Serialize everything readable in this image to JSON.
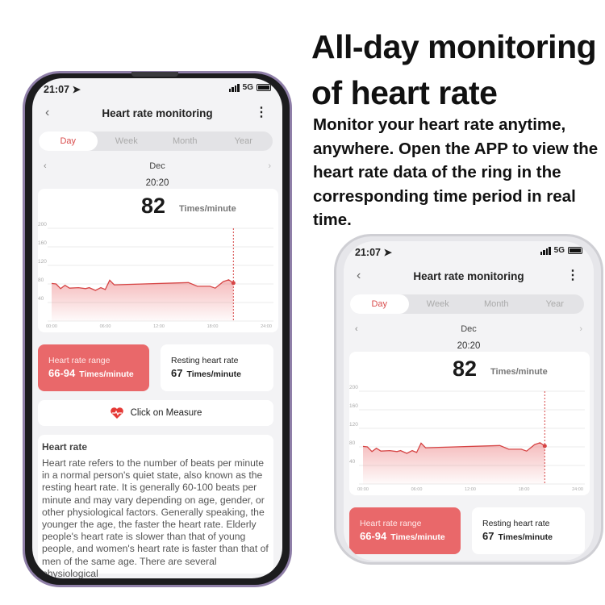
{
  "headline": {
    "line1": "All-day monitoring",
    "line2": "of heart rate"
  },
  "description": "Monitor your heart rate anytime, anywhere. Open the APP to view the heart rate data of the ring in the corresponding time period in real time.",
  "app": {
    "status": {
      "time": "21:07",
      "network": "5G",
      "icons": [
        "location-arrow-icon",
        "signal-icon",
        "battery-icon"
      ]
    },
    "header": {
      "title": "Heart rate monitoring",
      "back_icon": "chevron-left-icon",
      "menu_icon": "more-vertical-icon"
    },
    "tabs": [
      {
        "label": "Day",
        "active": true
      },
      {
        "label": "Week"
      },
      {
        "label": "Month"
      },
      {
        "label": "Year"
      }
    ],
    "month": "Dec",
    "selected_time": "20:20",
    "current": {
      "value": "82",
      "unit": "Times/minute"
    },
    "range": {
      "label": "Heart rate range",
      "value": "66-94",
      "unit": "Times/minute"
    },
    "resting": {
      "label": "Resting heart rate",
      "value": "67",
      "unit": "Times/minute"
    },
    "measure": {
      "label": "Click on Measure",
      "icon": "heart-pulse-icon"
    },
    "info": {
      "title": "Heart rate",
      "text": "Heart rate refers to the number of beats per minute in a normal person's quiet state, also known as the resting heart rate. It is generally 60-100 beats per minute and may vary depending on age, gender, or other physiological factors. Generally speaking, the younger the age, the faster the heart rate. Elderly people's heart rate is slower than that of young people, and women's heart rate is faster than that of men of the same age. There are several physiological"
    },
    "colors": {
      "accent": "#e9686a",
      "line": "#d64545",
      "tab_active": "#d94b4b"
    }
  },
  "chart_data": {
    "type": "area",
    "x_ticks": [
      "00:00",
      "06:00",
      "12:00",
      "18:00",
      "24:00"
    ],
    "y_ticks": [
      "200",
      "160",
      "120",
      "80",
      "40"
    ],
    "ylim": [
      0,
      200
    ],
    "xlim_hours": [
      0,
      24
    ],
    "grid": true,
    "x_hours": [
      0,
      0.5,
      1,
      1.5,
      2,
      3,
      3.8,
      4.2,
      4.9,
      5.5,
      6,
      6.5,
      7,
      15.3,
      16.3,
      17.7,
      18.3,
      19.2,
      19.8,
      20.33
    ],
    "y": [
      81,
      80,
      70,
      77,
      71,
      72,
      70,
      72,
      66,
      72,
      68,
      88,
      78,
      83,
      75,
      75,
      71,
      85,
      89,
      82
    ],
    "marker": {
      "x_hours": 20.33,
      "y": 82
    }
  }
}
